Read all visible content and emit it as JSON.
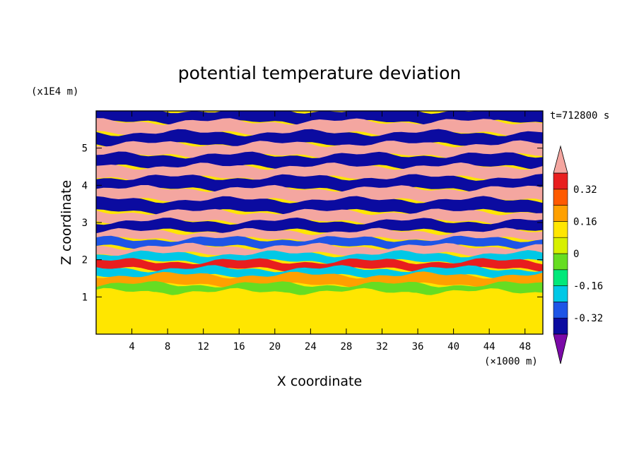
{
  "chart_data": {
    "type": "heatmap",
    "title": "potential temperature deviation",
    "xlabel": "X coordinate",
    "ylabel": "Z coordinate",
    "x_unit": "(×1000 m)",
    "y_unit": "(x1E4 m)",
    "time_label": "t=712800 s",
    "xlim": [
      0,
      50
    ],
    "ylim": [
      0,
      6
    ],
    "x_ticks": [
      4,
      8,
      12,
      16,
      20,
      24,
      28,
      32,
      36,
      40,
      44,
      48
    ],
    "y_ticks": [
      1,
      2,
      3,
      4,
      5
    ],
    "colorbar": {
      "levels": [
        -0.48,
        -0.4,
        -0.32,
        -0.24,
        -0.16,
        -0.08,
        0,
        0.08,
        0.16,
        0.24,
        0.32,
        0.4
      ],
      "labels": [
        "0.32",
        "0.16",
        "0",
        "-0.16",
        "-0.32"
      ],
      "label_values": [
        0.32,
        0.16,
        0,
        -0.16,
        -0.32
      ],
      "colors_bottom_to_top": [
        "#7b0aa8",
        "#0b0ba0",
        "#1e55e6",
        "#00c8e6",
        "#00e87a",
        "#66dd22",
        "#d7f000",
        "#ffe600",
        "#ffa000",
        "#ff5a00",
        "#e81e1e",
        "#f4a6a0"
      ],
      "extend": "both"
    },
    "layers": [
      {
        "z_center": 5.85,
        "value": -0.45
      },
      {
        "z_center": 5.55,
        "value": 0.45
      },
      {
        "z_center": 5.25,
        "value": -0.45
      },
      {
        "z_center": 4.95,
        "value": 0.45
      },
      {
        "z_center": 4.65,
        "value": -0.45
      },
      {
        "z_center": 4.35,
        "value": 0.45
      },
      {
        "z_center": 4.05,
        "value": -0.45
      },
      {
        "z_center": 3.75,
        "value": 0.45
      },
      {
        "z_center": 3.45,
        "value": -0.45
      },
      {
        "z_center": 3.15,
        "value": 0.45
      },
      {
        "z_center": 2.9,
        "value": -0.45
      },
      {
        "z_center": 2.65,
        "value": 0.45
      },
      {
        "z_center": 2.45,
        "value": -0.4
      },
      {
        "z_center": 2.25,
        "value": 0.35
      },
      {
        "z_center": 2.05,
        "value": -0.3
      },
      {
        "z_center": 1.85,
        "value": 0.3
      },
      {
        "z_center": 1.65,
        "value": -0.3
      },
      {
        "z_center": 1.45,
        "value": 0.1
      },
      {
        "z_center": 1.2,
        "value": -0.1
      },
      {
        "z_center": 0.95,
        "value": 0.02
      },
      {
        "z_center": 0.6,
        "value": 0.02
      },
      {
        "z_center": 0.2,
        "value": 0.06
      }
    ]
  }
}
